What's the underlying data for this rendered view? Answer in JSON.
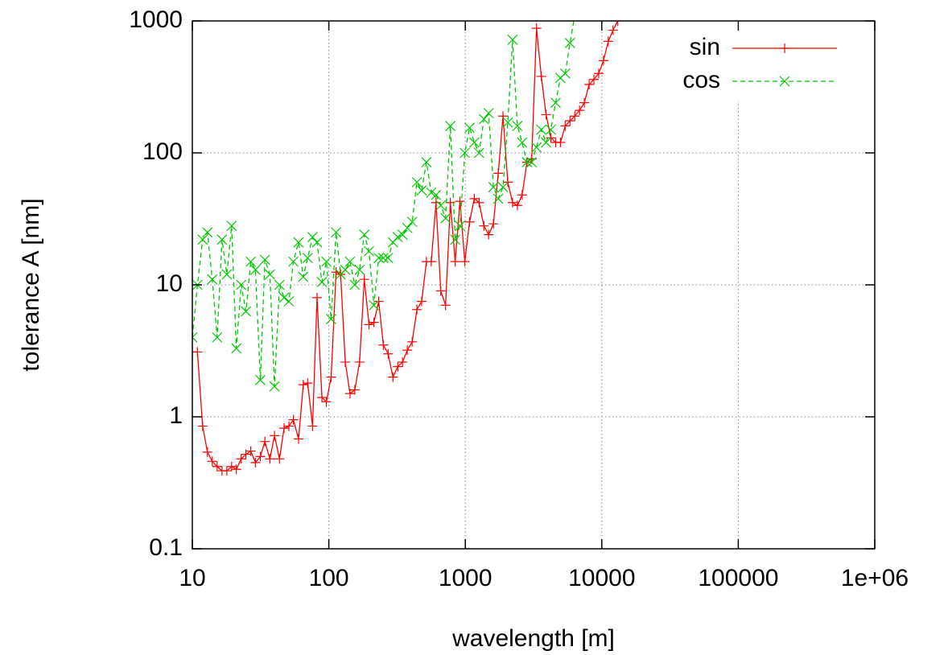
{
  "chart_data": {
    "type": "line",
    "xlabel": "wavelength [m]",
    "ylabel": "tolerance A [nm]",
    "xlog": true,
    "ylog": true,
    "xlim": [
      10,
      1000000
    ],
    "ylim": [
      0.1,
      1000
    ],
    "xticks": [
      10,
      100,
      1000,
      10000,
      100000,
      {
        "value": 1000000,
        "label": "1e+06"
      }
    ],
    "yticks": [
      0.1,
      1,
      10,
      100,
      1000
    ],
    "grid": true,
    "legend": "top-right",
    "series": [
      {
        "name": "sin",
        "color": "#ff0000",
        "marker": "+",
        "dash": "solid",
        "x": [
          10,
          10.9,
          11.9,
          12.9,
          14,
          15.2,
          16.5,
          17.9,
          19.4,
          21,
          22.8,
          24.7,
          26.8,
          29,
          31.5,
          34,
          37,
          40,
          43.5,
          47,
          51,
          55,
          60,
          65,
          70,
          76,
          82,
          89,
          96,
          104,
          113,
          122,
          132,
          143,
          155,
          168,
          182,
          197,
          214,
          232,
          251,
          272,
          295,
          320,
          347,
          376,
          408,
          442,
          479,
          519,
          563,
          610,
          661,
          717,
          777,
          843,
          914,
          991,
          1074,
          1164,
          1262,
          1368,
          1483,
          1608,
          1743,
          1889,
          2048,
          2220,
          2407,
          2609,
          2828,
          3066,
          3324,
          3603,
          3906,
          4234,
          4590,
          4976,
          5394,
          5847,
          6339,
          6872,
          7449,
          8075,
          8754,
          9490,
          10288,
          11153,
          12090,
          13107
        ],
        "values": [
          3.1,
          3.1,
          0.85,
          0.54,
          0.46,
          0.42,
          0.39,
          0.39,
          0.42,
          0.4,
          0.48,
          0.52,
          0.55,
          0.45,
          0.5,
          0.65,
          0.48,
          0.72,
          0.48,
          0.82,
          0.85,
          0.95,
          0.68,
          1.75,
          1.8,
          0.85,
          8,
          1.4,
          1.3,
          2,
          12.5,
          12,
          2.6,
          1.5,
          1.6,
          2.6,
          11,
          5,
          5.2,
          7.5,
          3.5,
          3,
          2,
          2.4,
          2.6,
          3.2,
          3.7,
          6.5,
          7.5,
          15,
          15,
          42,
          9,
          7,
          42,
          15,
          43,
          15,
          30,
          45,
          42,
          28,
          24,
          29,
          70,
          190,
          60,
          42,
          40,
          48,
          85,
          90,
          880,
          380,
          195,
          130,
          120,
          120,
          160,
          175,
          190,
          210,
          240,
          330,
          360,
          400,
          500,
          700,
          850,
          1000
        ]
      },
      {
        "name": "cos",
        "color": "#00c800",
        "marker": "x",
        "dash": "dashed",
        "x": [
          10,
          10.9,
          11.9,
          12.9,
          14,
          15.2,
          16.5,
          17.9,
          19.4,
          21,
          22.8,
          24.7,
          26.8,
          29,
          31.5,
          34,
          37,
          40,
          43.5,
          47,
          51,
          55,
          60,
          65,
          70,
          76,
          82,
          89,
          96,
          104,
          113,
          122,
          132,
          143,
          155,
          168,
          182,
          197,
          214,
          232,
          251,
          272,
          295,
          320,
          347,
          376,
          408,
          442,
          479,
          519,
          563,
          610,
          661,
          717,
          777,
          843,
          914,
          991,
          1074,
          1164,
          1262,
          1368,
          1483,
          1608,
          1743,
          1889,
          2048,
          2220,
          2407,
          2609,
          2828,
          3066,
          3324,
          3603,
          3906,
          4234,
          4590,
          4976,
          5394,
          5847,
          6339
        ],
        "values": [
          4,
          10,
          22,
          25,
          11,
          4,
          22,
          12,
          28,
          3.3,
          10,
          6.3,
          15,
          13,
          1.9,
          15.5,
          12,
          1.7,
          10,
          8,
          7.5,
          15,
          21,
          11.5,
          16,
          23,
          21,
          10.5,
          15,
          5.5,
          25,
          12,
          13,
          15,
          10,
          13,
          24,
          18,
          7,
          16,
          16,
          16,
          21,
          23,
          24,
          27,
          30,
          60,
          52,
          85,
          50,
          48,
          40,
          32,
          160,
          22,
          28,
          100,
          155,
          120,
          100,
          180,
          200,
          55,
          45,
          55,
          170,
          720,
          160,
          120,
          85,
          85,
          110,
          150,
          120,
          150,
          240,
          370,
          400,
          680,
          1100
        ]
      }
    ]
  }
}
